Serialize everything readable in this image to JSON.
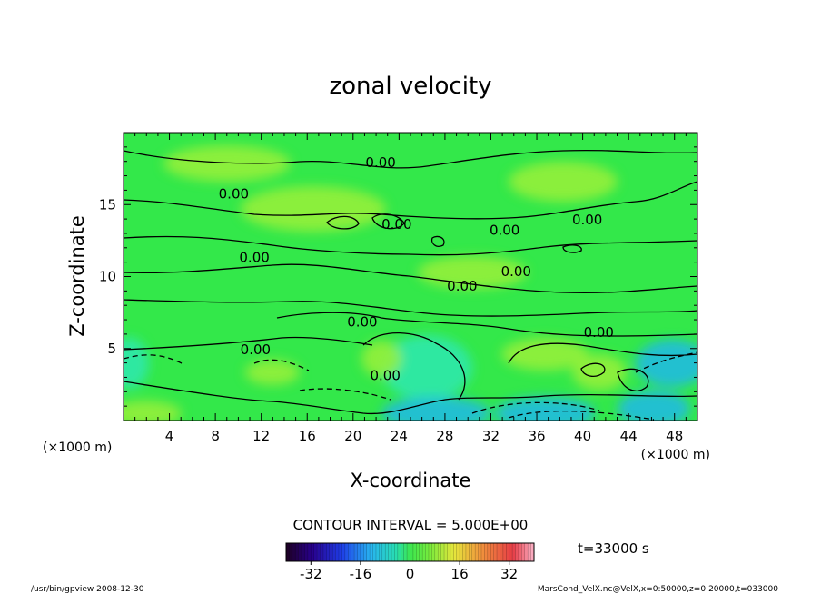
{
  "chart_data": {
    "type": "contour",
    "title": "zonal velocity",
    "xlabel": "X-coordinate",
    "ylabel": "Z-coordinate",
    "x_unit_left": "(×1000 m)",
    "x_unit_right": "(×1000 m)",
    "xlim": [
      0,
      50
    ],
    "ylim": [
      0,
      20
    ],
    "x_ticks": [
      4,
      8,
      12,
      16,
      20,
      24,
      28,
      32,
      36,
      40,
      44,
      48
    ],
    "y_ticks": [
      5,
      10,
      15
    ],
    "contour_interval_text": "CONTOUR INTERVAL = 5.000E+00",
    "time_text": "t=33000 s",
    "contour_labels": [
      {
        "text": "0.00",
        "x": 22.4,
        "y": 17.9
      },
      {
        "text": "0.00",
        "x": 9.6,
        "y": 15.7
      },
      {
        "text": "0.00",
        "x": 23.8,
        "y": 13.6
      },
      {
        "text": "0.00",
        "x": 33.2,
        "y": 13.2
      },
      {
        "text": "0.00",
        "x": 40.4,
        "y": 13.9
      },
      {
        "text": "0.00",
        "x": 11.4,
        "y": 11.3
      },
      {
        "text": "0.00",
        "x": 34.2,
        "y": 10.3
      },
      {
        "text": "0.00",
        "x": 29.5,
        "y": 9.3
      },
      {
        "text": "0.00",
        "x": 20.8,
        "y": 6.8
      },
      {
        "text": "0.00",
        "x": 41.4,
        "y": 6.1
      },
      {
        "text": "0.00",
        "x": 11.5,
        "y": 4.9
      },
      {
        "text": "0.00",
        "x": 22.8,
        "y": 3.1
      }
    ],
    "colorbar": {
      "ticks": [
        -32,
        -16,
        0,
        16,
        32
      ],
      "range": [
        -40,
        40
      ]
    }
  },
  "footer": {
    "left": "/usr/bin/gpview   2008-12-30",
    "right": "MarsCond_VelX.nc@VelX,x=0:50000,z=0:20000,t=033000"
  },
  "colors": {
    "field_base": "#33e84a",
    "field_light": "#9bf03a",
    "field_cyan": "#2ee8b0",
    "field_deep": "#1fb8e8"
  }
}
